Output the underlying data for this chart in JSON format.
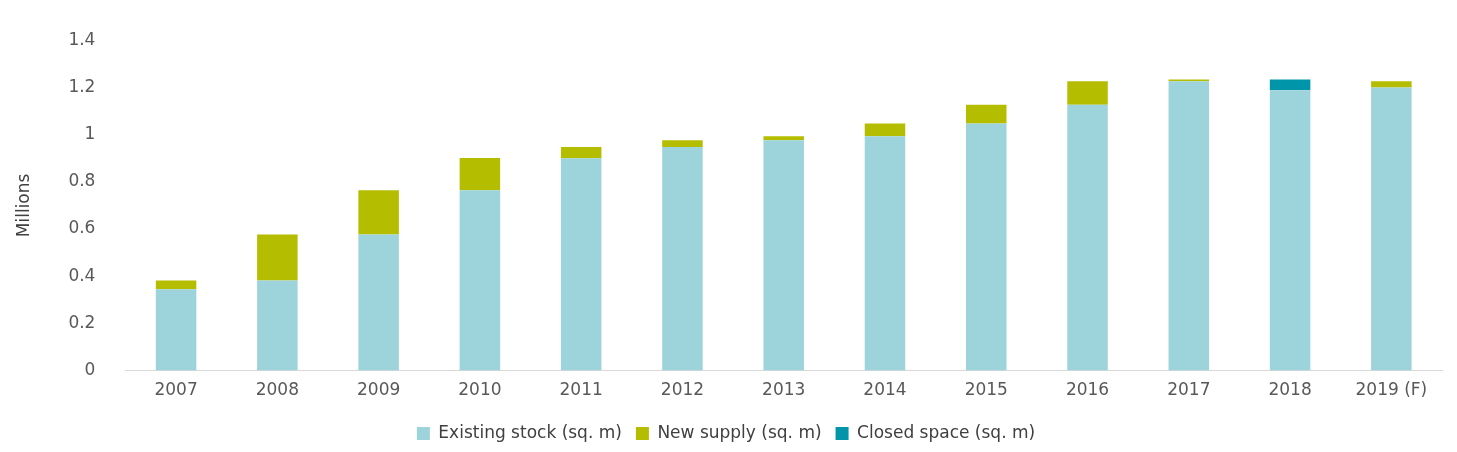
{
  "chart_data": {
    "type": "bar",
    "stacked": true,
    "ylabel": "Millions",
    "categories": [
      "2007",
      "2008",
      "2009",
      "2010",
      "2011",
      "2012",
      "2013",
      "2014",
      "2015",
      "2016",
      "2017",
      "2018",
      "2019 (F)"
    ],
    "series": [
      {
        "name": "Existing stock (sq. m)",
        "color": "#9dd4dc",
        "values": [
          0.345,
          0.382,
          0.577,
          0.764,
          0.9,
          0.947,
          0.976,
          0.993,
          1.047,
          1.126,
          1.226,
          1.188,
          1.2
        ]
      },
      {
        "name": "New supply (sq. m)",
        "color": "#b5bd00",
        "values": [
          0.037,
          0.195,
          0.187,
          0.137,
          0.047,
          0.029,
          0.017,
          0.054,
          0.079,
          0.1,
          0.008,
          null,
          0.026
        ]
      },
      {
        "name": "Closed space (sq. m)",
        "color": "#0095a9",
        "values": [
          null,
          null,
          null,
          null,
          null,
          null,
          null,
          null,
          null,
          null,
          null,
          0.046,
          null
        ]
      }
    ],
    "ylim": [
      0,
      1.4
    ],
    "yticks": [
      0,
      0.2,
      0.4,
      0.6,
      0.8,
      1,
      1.2,
      1.4
    ],
    "grid": false,
    "legend": "bottom"
  }
}
